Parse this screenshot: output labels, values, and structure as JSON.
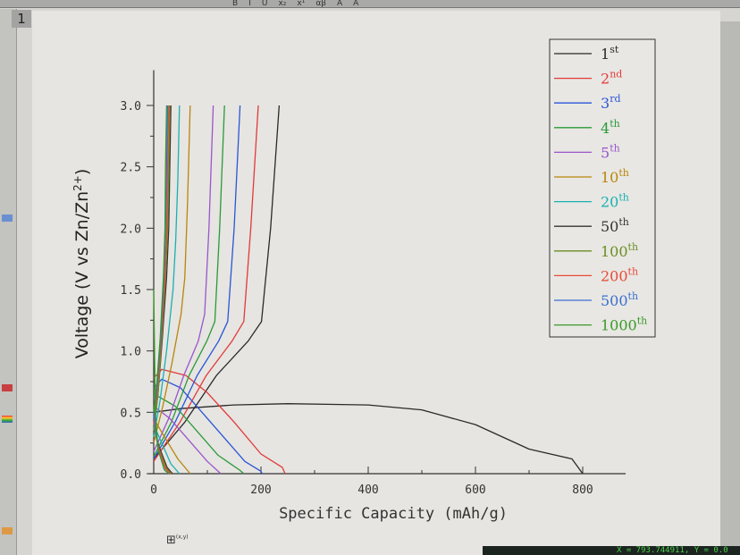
{
  "toolbar": {
    "items": [
      "B",
      "I",
      "U",
      "x₂",
      "x¹",
      "αβ",
      "A",
      "A"
    ]
  },
  "tab_label": "1",
  "status_text": "X = 793.744911, Y = 0.0",
  "tool_icon_label": "(x,y)",
  "chart_data": {
    "type": "line",
    "xlabel": "Specific Capacity (mAh/g)",
    "ylabel_main": "Voltage (V vs Zn/Zn",
    "ylabel_sup": "2+",
    "ylabel_end": ")",
    "xlim": [
      -10,
      900
    ],
    "ylim": [
      0,
      3.2
    ],
    "xticks": [
      0,
      200,
      400,
      600,
      800
    ],
    "yticks": [
      "0.0",
      "0.5",
      "1.0",
      "1.5",
      "2.0",
      "2.5",
      "3.0"
    ],
    "legend_position": "top-right",
    "series": [
      {
        "num": "1",
        "sup": "st",
        "color": "#2a2a2a",
        "charge": [
          [
            0,
            0.12
          ],
          [
            58,
            0.42
          ],
          [
            117,
            0.8
          ],
          [
            176,
            1.08
          ],
          [
            201,
            1.24
          ],
          [
            218,
            2.0
          ],
          [
            234,
            3.0
          ]
        ],
        "discharge": [
          [
            0,
            0.5
          ],
          [
            50,
            0.53
          ],
          [
            150,
            0.56
          ],
          [
            250,
            0.57
          ],
          [
            400,
            0.56
          ],
          [
            500,
            0.52
          ],
          [
            600,
            0.4
          ],
          [
            700,
            0.2
          ],
          [
            780,
            0.12
          ],
          [
            800,
            0.0
          ]
        ]
      },
      {
        "num": "2",
        "sup": "nd",
        "color": "#e23a3a",
        "charge": [
          [
            0,
            0.1
          ],
          [
            49,
            0.42
          ],
          [
            98,
            0.8
          ],
          [
            146,
            1.08
          ],
          [
            168,
            1.24
          ],
          [
            181,
            2.0
          ],
          [
            195,
            3.0
          ]
        ],
        "discharge": [
          [
            0,
            0.78
          ],
          [
            15,
            0.85
          ],
          [
            60,
            0.8
          ],
          [
            100,
            0.66
          ],
          [
            150,
            0.42
          ],
          [
            200,
            0.16
          ],
          [
            240,
            0.05
          ],
          [
            245,
            0
          ]
        ]
      },
      {
        "num": "3",
        "sup": "rd",
        "color": "#2a55d8",
        "charge": [
          [
            0,
            0.12
          ],
          [
            40,
            0.42
          ],
          [
            81,
            0.8
          ],
          [
            121,
            1.08
          ],
          [
            138,
            1.24
          ],
          [
            150,
            2.0
          ],
          [
            161,
            3.0
          ]
        ],
        "discharge": [
          [
            0,
            0.7
          ],
          [
            15,
            0.77
          ],
          [
            50,
            0.7
          ],
          [
            90,
            0.5
          ],
          [
            130,
            0.3
          ],
          [
            170,
            0.1
          ],
          [
            200,
            0.02
          ],
          [
            202,
            0
          ]
        ]
      },
      {
        "num": "4",
        "sup": "th",
        "color": "#2a9a3a",
        "charge": [
          [
            0,
            0.14
          ],
          [
            33,
            0.42
          ],
          [
            66,
            0.8
          ],
          [
            99,
            1.08
          ],
          [
            114,
            1.24
          ],
          [
            123,
            2.0
          ],
          [
            132,
            3.0
          ]
        ],
        "discharge": [
          [
            0,
            0.65
          ],
          [
            40,
            0.55
          ],
          [
            80,
            0.35
          ],
          [
            120,
            0.15
          ],
          [
            160,
            0.03
          ],
          [
            168,
            0
          ]
        ]
      },
      {
        "num": "5",
        "sup": "th",
        "color": "#9a55cc",
        "charge": [
          [
            0,
            0.18
          ],
          [
            28,
            0.45
          ],
          [
            56,
            0.8
          ],
          [
            83,
            1.08
          ],
          [
            95,
            1.3
          ],
          [
            103,
            2.0
          ],
          [
            111,
            3.0
          ]
        ],
        "discharge": [
          [
            0,
            0.55
          ],
          [
            30,
            0.45
          ],
          [
            70,
            0.25
          ],
          [
            100,
            0.1
          ],
          [
            125,
            0
          ]
        ]
      },
      {
        "num": "10",
        "sup": "th",
        "color": "#b8860b",
        "charge": [
          [
            0,
            0.25
          ],
          [
            17,
            0.55
          ],
          [
            34,
            0.9
          ],
          [
            51,
            1.3
          ],
          [
            58,
            1.6
          ],
          [
            63,
            2.2
          ],
          [
            68,
            3.0
          ]
        ],
        "discharge": [
          [
            0,
            0.45
          ],
          [
            20,
            0.3
          ],
          [
            45,
            0.12
          ],
          [
            68,
            0
          ]
        ]
      },
      {
        "num": "20",
        "sup": "th",
        "color": "#1ab0b0",
        "charge": [
          [
            0,
            0.3
          ],
          [
            12,
            0.6
          ],
          [
            24,
            1.0
          ],
          [
            36,
            1.5
          ],
          [
            41,
            1.9
          ],
          [
            45,
            2.4
          ],
          [
            48,
            3.0
          ]
        ],
        "discharge": [
          [
            0,
            0.4
          ],
          [
            15,
            0.25
          ],
          [
            32,
            0.08
          ],
          [
            48,
            0
          ]
        ]
      },
      {
        "num": "50",
        "sup": "th",
        "color": "#333333",
        "charge": [
          [
            0,
            0.35
          ],
          [
            8,
            0.65
          ],
          [
            16,
            1.1
          ],
          [
            24,
            1.6
          ],
          [
            28,
            2.0
          ],
          [
            30,
            2.5
          ],
          [
            32,
            3.0
          ]
        ],
        "discharge": [
          [
            0,
            0.38
          ],
          [
            10,
            0.22
          ],
          [
            25,
            0.05
          ],
          [
            35,
            0
          ]
        ]
      },
      {
        "num": "100",
        "sup": "th",
        "color": "#6b8e23",
        "charge": [
          [
            0,
            0.35
          ],
          [
            8,
            0.65
          ],
          [
            15,
            1.1
          ],
          [
            22,
            1.6
          ],
          [
            26,
            2.0
          ],
          [
            28,
            2.5
          ],
          [
            30,
            3.0
          ]
        ],
        "discharge": [
          [
            0,
            0.38
          ],
          [
            10,
            0.2
          ],
          [
            24,
            0.04
          ],
          [
            33,
            0
          ]
        ]
      },
      {
        "num": "200",
        "sup": "th",
        "color": "#e84a3a",
        "charge": [
          [
            0,
            0.4
          ],
          [
            7,
            0.7
          ],
          [
            14,
            1.1
          ],
          [
            21,
            1.6
          ],
          [
            24,
            2.0
          ],
          [
            26,
            2.5
          ],
          [
            28,
            3.0
          ]
        ],
        "discharge": [
          [
            0,
            0.5
          ],
          [
            8,
            0.22
          ],
          [
            22,
            0.04
          ],
          [
            31,
            0
          ]
        ]
      },
      {
        "num": "500",
        "sup": "th",
        "color": "#3a6fd0",
        "charge": [
          [
            0,
            0.45
          ],
          [
            6,
            0.7
          ],
          [
            13,
            1.1
          ],
          [
            19,
            1.6
          ],
          [
            22,
            2.0
          ],
          [
            24,
            2.5
          ],
          [
            26,
            3.0
          ]
        ],
        "discharge": [
          [
            0,
            0.5
          ],
          [
            8,
            0.2
          ],
          [
            20,
            0.03
          ],
          [
            29,
            0
          ]
        ]
      },
      {
        "num": "1000",
        "sup": "th",
        "color": "#3a9a2a",
        "charge": [
          [
            0,
            0.5
          ],
          [
            6,
            0.75
          ],
          [
            12,
            1.1
          ],
          [
            18,
            1.6
          ],
          [
            21,
            2.0
          ],
          [
            22,
            2.5
          ],
          [
            24,
            3.0
          ]
        ],
        "discharge": [
          [
            0,
            1.5
          ],
          [
            3,
            0.5
          ],
          [
            8,
            0.2
          ],
          [
            20,
            0.03
          ],
          [
            28,
            0
          ]
        ]
      }
    ]
  }
}
